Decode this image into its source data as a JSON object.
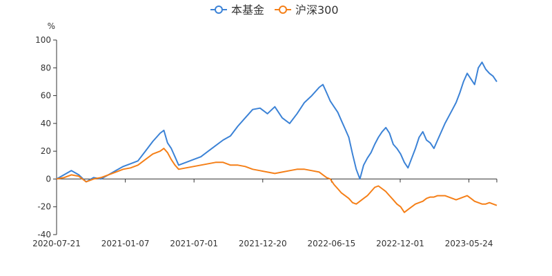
{
  "chart_data": {
    "type": "line",
    "title": "",
    "ylabel": "%",
    "xlabel": "",
    "ylim": [
      -40,
      100
    ],
    "yticks": [
      -40,
      -20,
      0,
      20,
      40,
      60,
      80,
      100
    ],
    "x_tick_labels": [
      "2020-07-21",
      "2021-01-07",
      "2021-07-01",
      "2021-12-20",
      "2022-06-15",
      "2022-12-01",
      "2023-05-24"
    ],
    "grid": false,
    "legend_position": "top-center",
    "series": [
      {
        "name": "本基金",
        "color": "#3b82d6",
        "points": [
          [
            0,
            0
          ],
          [
            2,
            3
          ],
          [
            4,
            6
          ],
          [
            6,
            3
          ],
          [
            8,
            -2
          ],
          [
            10,
            1
          ],
          [
            12,
            0
          ],
          [
            14,
            3
          ],
          [
            16,
            6
          ],
          [
            18,
            9
          ],
          [
            20,
            11
          ],
          [
            22,
            13
          ],
          [
            24,
            20
          ],
          [
            26,
            27
          ],
          [
            28,
            33
          ],
          [
            29,
            35
          ],
          [
            30,
            26
          ],
          [
            31,
            22
          ],
          [
            32,
            16
          ],
          [
            33,
            10
          ],
          [
            35,
            12
          ],
          [
            37,
            14
          ],
          [
            39,
            16
          ],
          [
            41,
            20
          ],
          [
            43,
            24
          ],
          [
            45,
            28
          ],
          [
            47,
            31
          ],
          [
            49,
            38
          ],
          [
            51,
            44
          ],
          [
            53,
            50
          ],
          [
            55,
            51
          ],
          [
            57,
            47
          ],
          [
            59,
            52
          ],
          [
            61,
            44
          ],
          [
            63,
            40
          ],
          [
            65,
            47
          ],
          [
            67,
            55
          ],
          [
            69,
            60
          ],
          [
            71,
            66
          ],
          [
            72,
            68
          ],
          [
            73,
            62
          ],
          [
            74,
            56
          ],
          [
            75,
            52
          ],
          [
            76,
            48
          ],
          [
            77,
            42
          ],
          [
            78,
            36
          ],
          [
            79,
            30
          ],
          [
            80,
            18
          ],
          [
            81,
            7
          ],
          [
            82,
            0
          ],
          [
            83,
            10
          ],
          [
            84,
            15
          ],
          [
            85,
            19
          ],
          [
            86,
            25
          ],
          [
            87,
            30
          ],
          [
            88,
            34
          ],
          [
            89,
            37
          ],
          [
            90,
            33
          ],
          [
            91,
            25
          ],
          [
            92,
            22
          ],
          [
            93,
            18
          ],
          [
            94,
            12
          ],
          [
            95,
            8
          ],
          [
            96,
            15
          ],
          [
            97,
            22
          ],
          [
            98,
            30
          ],
          [
            99,
            34
          ],
          [
            100,
            28
          ],
          [
            101,
            26
          ],
          [
            102,
            22
          ],
          [
            103,
            28
          ],
          [
            104,
            34
          ],
          [
            105,
            40
          ],
          [
            106,
            45
          ],
          [
            107,
            50
          ],
          [
            108,
            55
          ],
          [
            109,
            62
          ],
          [
            110,
            70
          ],
          [
            111,
            76
          ],
          [
            112,
            72
          ],
          [
            113,
            68
          ],
          [
            114,
            80
          ],
          [
            115,
            84
          ],
          [
            116,
            79
          ],
          [
            117,
            76
          ],
          [
            118,
            74
          ],
          [
            119,
            70
          ]
        ]
      },
      {
        "name": "沪深300",
        "color": "#f57f17",
        "points": [
          [
            0,
            0
          ],
          [
            2,
            1
          ],
          [
            4,
            3
          ],
          [
            6,
            2
          ],
          [
            8,
            -2
          ],
          [
            10,
            0
          ],
          [
            12,
            1
          ],
          [
            14,
            3
          ],
          [
            16,
            5
          ],
          [
            18,
            7
          ],
          [
            20,
            8
          ],
          [
            22,
            10
          ],
          [
            24,
            14
          ],
          [
            26,
            18
          ],
          [
            28,
            20
          ],
          [
            29,
            22
          ],
          [
            30,
            19
          ],
          [
            31,
            14
          ],
          [
            32,
            10
          ],
          [
            33,
            7
          ],
          [
            35,
            8
          ],
          [
            37,
            9
          ],
          [
            39,
            10
          ],
          [
            41,
            11
          ],
          [
            43,
            12
          ],
          [
            45,
            12
          ],
          [
            47,
            10
          ],
          [
            49,
            10
          ],
          [
            51,
            9
          ],
          [
            53,
            7
          ],
          [
            55,
            6
          ],
          [
            57,
            5
          ],
          [
            59,
            4
          ],
          [
            61,
            5
          ],
          [
            63,
            6
          ],
          [
            65,
            7
          ],
          [
            67,
            7
          ],
          [
            69,
            6
          ],
          [
            71,
            5
          ],
          [
            72,
            3
          ],
          [
            73,
            1
          ],
          [
            74,
            0
          ],
          [
            75,
            -4
          ],
          [
            76,
            -7
          ],
          [
            77,
            -10
          ],
          [
            78,
            -12
          ],
          [
            79,
            -14
          ],
          [
            80,
            -17
          ],
          [
            81,
            -18
          ],
          [
            82,
            -16
          ],
          [
            83,
            -14
          ],
          [
            84,
            -12
          ],
          [
            85,
            -9
          ],
          [
            86,
            -6
          ],
          [
            87,
            -5
          ],
          [
            88,
            -7
          ],
          [
            89,
            -9
          ],
          [
            90,
            -12
          ],
          [
            91,
            -15
          ],
          [
            92,
            -18
          ],
          [
            93,
            -20
          ],
          [
            94,
            -24
          ],
          [
            95,
            -22
          ],
          [
            96,
            -20
          ],
          [
            97,
            -18
          ],
          [
            98,
            -17
          ],
          [
            99,
            -16
          ],
          [
            100,
            -14
          ],
          [
            101,
            -13
          ],
          [
            102,
            -13
          ],
          [
            103,
            -12
          ],
          [
            104,
            -12
          ],
          [
            105,
            -12
          ],
          [
            106,
            -13
          ],
          [
            107,
            -14
          ],
          [
            108,
            -15
          ],
          [
            109,
            -14
          ],
          [
            110,
            -13
          ],
          [
            111,
            -12
          ],
          [
            112,
            -14
          ],
          [
            113,
            -16
          ],
          [
            114,
            -17
          ],
          [
            115,
            -18
          ],
          [
            116,
            -18
          ],
          [
            117,
            -17
          ],
          [
            118,
            -18
          ],
          [
            119,
            -19
          ]
        ]
      }
    ]
  }
}
